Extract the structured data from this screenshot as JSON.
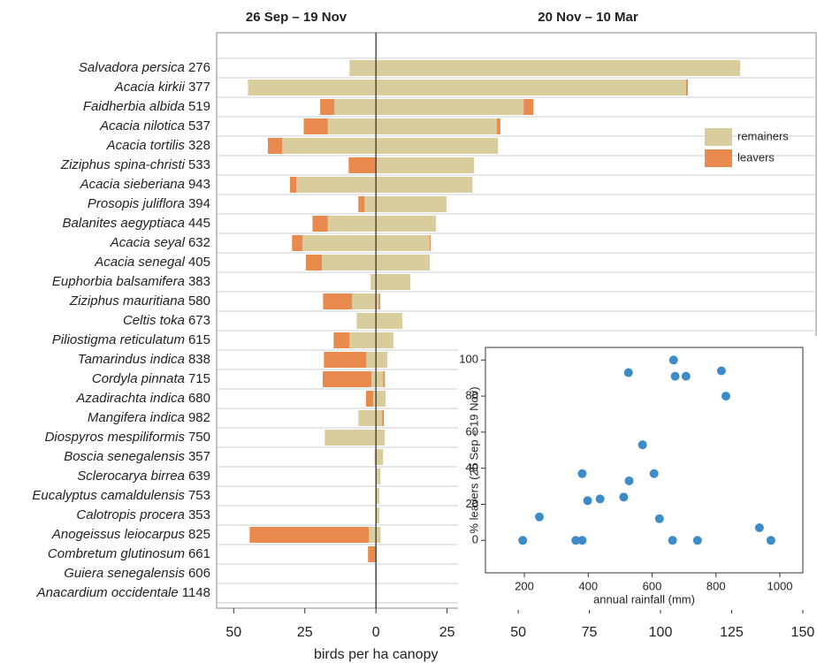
{
  "chart_data": [
    {
      "type": "diverging-bar",
      "periods": [
        "26 Sep – 19 Nov",
        "20 Nov – 10 Mar"
      ],
      "species": [
        "Salvadora persica",
        "Acacia kirkii",
        "Faidherbia albida",
        "Acacia nilotica",
        "Acacia tortilis",
        "Ziziphus spina-christi",
        "Acacia sieberiana",
        "Prosopis juliflora",
        "Balanites aegyptiaca",
        "Acacia seyal",
        "Acacia senegal",
        "Euphorbia balsamifera",
        "Ziziphus mauritiana",
        "Celtis toka",
        "Piliostigma reticulatum",
        "Tamarindus indica",
        "Cordyla pinnata",
        "Azadirachta indica",
        "Mangifera indica",
        "Diospyros mespiliformis",
        "Boscia senegalensis",
        "Sclerocarya birrea",
        "Eucalyptus camaldulensis",
        "Calotropis procera",
        "Anogeissus leiocarpus",
        "Combretum glutinosum",
        "Guiera senegalensis",
        "Anacardium occidentale"
      ],
      "rainfall": [
        276,
        377,
        519,
        537,
        328,
        533,
        943,
        394,
        445,
        632,
        405,
        383,
        580,
        673,
        615,
        838,
        715,
        680,
        982,
        750,
        357,
        639,
        753,
        353,
        825,
        661,
        606,
        1148
      ],
      "series": [
        {
          "name": "remainers",
          "color": "#d9cd9e",
          "values": [
            [
              9.3,
              128
            ],
            [
              45,
              109
            ],
            [
              14.6,
              51.9
            ],
            [
              17,
              42.5
            ],
            [
              33,
              42.9
            ],
            [
              0,
              34.5
            ],
            [
              28,
              33.9
            ],
            [
              4,
              24.8
            ],
            [
              17,
              21.1
            ],
            [
              25.8,
              18.9
            ],
            [
              19,
              18.9
            ],
            [
              1.9,
              12.1
            ],
            [
              8.4,
              1
            ],
            [
              6.8,
              9.3
            ],
            [
              9.3,
              6.2
            ],
            [
              3.4,
              4
            ],
            [
              1.6,
              2.5
            ],
            [
              1,
              3.4
            ],
            [
              6.2,
              2.2
            ],
            [
              18,
              3.1
            ],
            [
              0.5,
              2.5
            ],
            [
              0,
              1.6
            ],
            [
              0,
              1.2
            ],
            [
              0,
              1.2
            ],
            [
              2.5,
              1.6
            ],
            [
              0,
              0
            ],
            [
              0.3,
              0
            ],
            [
              0,
              0
            ]
          ]
        },
        {
          "name": "leavers",
          "color": "#e8894e",
          "values": [
            [
              0,
              0
            ],
            [
              0,
              0.6
            ],
            [
              5,
              3.4
            ],
            [
              8.4,
              1.2
            ],
            [
              5,
              0
            ],
            [
              9.6,
              0
            ],
            [
              2.2,
              0
            ],
            [
              2.2,
              0
            ],
            [
              5.3,
              0
            ],
            [
              3.7,
              0.3
            ],
            [
              5.6,
              0
            ],
            [
              0,
              0
            ],
            [
              10.2,
              0.5
            ],
            [
              0,
              0
            ],
            [
              5.6,
              0
            ],
            [
              14.9,
              0
            ],
            [
              17.1,
              0.6
            ],
            [
              2.5,
              0
            ],
            [
              0,
              0.6
            ],
            [
              0,
              0
            ],
            [
              0,
              0
            ],
            [
              0,
              0
            ],
            [
              0,
              0
            ],
            [
              0,
              0
            ],
            [
              41.9,
              0
            ],
            [
              2.8,
              0
            ],
            [
              0,
              0
            ],
            [
              0,
              0
            ]
          ]
        }
      ],
      "xlabel": "birds per ha canopy",
      "xlim": [
        -56,
        155
      ],
      "xticks": [
        {
          "value": -50,
          "label": "50"
        },
        {
          "value": -25,
          "label": "25"
        },
        0,
        25,
        50,
        75,
        100,
        125,
        150
      ]
    },
    {
      "type": "scatter",
      "xlabel": "annual rainfall (mm)",
      "ylabel": "% leavers (26 Sep – 19 Nov)",
      "color": "#3d8cc8",
      "x": [
        195,
        247,
        361,
        381,
        381,
        398,
        437,
        511,
        526,
        528,
        570,
        606,
        623,
        664,
        667,
        672,
        706,
        742,
        817,
        831,
        936,
        972
      ],
      "y": [
        0,
        13,
        0,
        0,
        37,
        22,
        23,
        24,
        93,
        33,
        53,
        37,
        12,
        0,
        100,
        91,
        91,
        0,
        94,
        80,
        7,
        0
      ],
      "xlim": [
        78,
        1072
      ],
      "ylim": [
        -18,
        107
      ],
      "xticks": [
        200,
        400,
        600,
        800,
        1000
      ],
      "yticks": [
        0,
        20,
        40,
        60,
        80,
        100
      ]
    }
  ]
}
